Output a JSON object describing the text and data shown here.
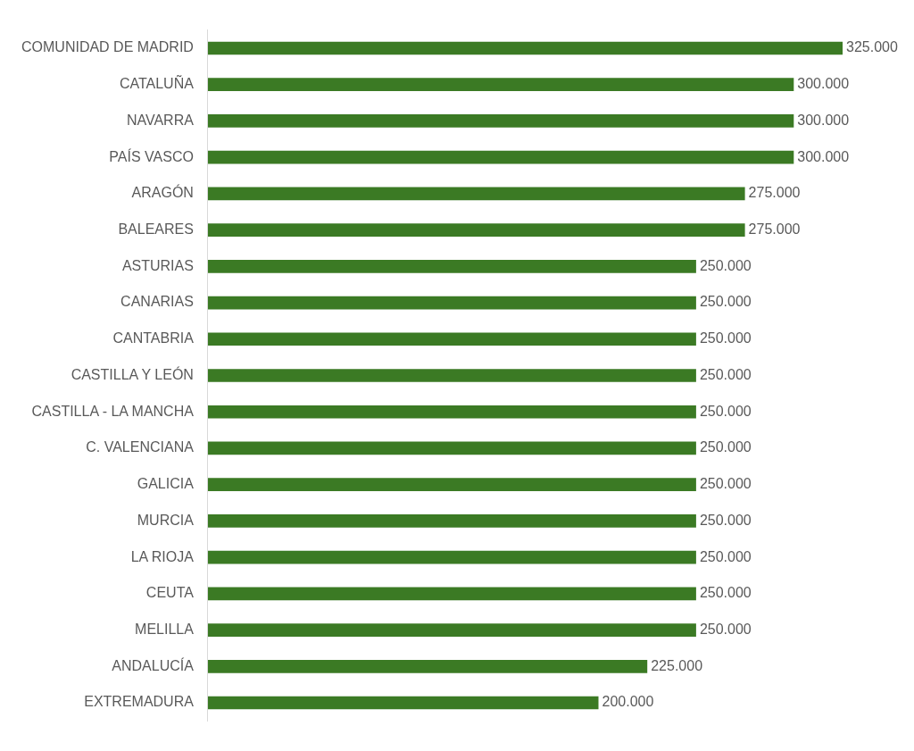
{
  "chart_data": {
    "type": "bar",
    "orientation": "horizontal",
    "categories": [
      "COMUNIDAD DE MADRID",
      "CATALUÑA",
      "NAVARRA",
      "PAÍS VASCO",
      "ARAGÓN",
      "BALEARES",
      "ASTURIAS",
      "CANARIAS",
      "CANTABRIA",
      "CASTILLA Y LEÓN",
      "CASTILLA - LA MANCHA",
      "C. VALENCIANA",
      "GALICIA",
      "MURCIA",
      "LA RIOJA",
      "CEUTA",
      "MELILLA",
      "ANDALUCÍA",
      "EXTREMADURA"
    ],
    "values": [
      325000,
      300000,
      300000,
      300000,
      275000,
      275000,
      250000,
      250000,
      250000,
      250000,
      250000,
      250000,
      250000,
      250000,
      250000,
      250000,
      250000,
      225000,
      200000
    ],
    "value_labels": [
      "325.000",
      "300.000",
      "300.000",
      "300.000",
      "275.000",
      "275.000",
      "250.000",
      "250.000",
      "250.000",
      "250.000",
      "250.000",
      "250.000",
      "250.000",
      "250.000",
      "250.000",
      "250.000",
      "250.000",
      "225.000",
      "200.000"
    ],
    "color": "#3b7a24",
    "tick_labels": "y"
  }
}
